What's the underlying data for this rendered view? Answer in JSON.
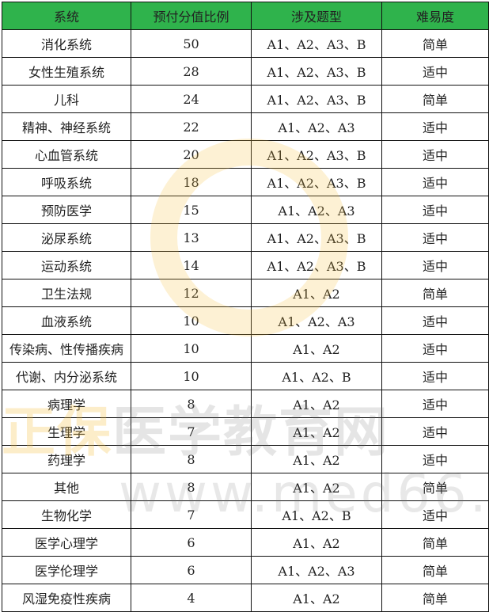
{
  "header": [
    "系统",
    "预付分值比例",
    "涉及题型",
    "难易度"
  ],
  "rows": [
    [
      "消化系统",
      "50",
      "A1、A2、A3、B",
      "简单"
    ],
    [
      "女性生殖系统",
      "28",
      "A1、A2、A3、B",
      "适中"
    ],
    [
      "儿科",
      "24",
      "A1、A2、A3、B",
      "简单"
    ],
    [
      "精神、神经系统",
      "22",
      "A1、A2、A3",
      "适中"
    ],
    [
      "心血管系统",
      "20",
      "A1、A2、A3、B",
      "适中"
    ],
    [
      "呼吸系统",
      "18",
      "A1、A2、A3、B",
      "适中"
    ],
    [
      "预防医学",
      "15",
      "A1、A2、A3",
      "适中"
    ],
    [
      "泌尿系统",
      "13",
      "A1、A2、A3、B",
      "适中"
    ],
    [
      "运动系统",
      "14",
      "A1、A2、A3、B",
      "适中"
    ],
    [
      "卫生法规",
      "12",
      "A1、A2",
      "简单"
    ],
    [
      "血液系统",
      "10",
      "A1、A2、A3",
      "适中"
    ],
    [
      "传染病、性传播疾病",
      "10",
      "A1、A2",
      "适中"
    ],
    [
      "代谢、内分泌系统",
      "10",
      "A1、A2、B",
      "适中"
    ],
    [
      "病理学",
      "8",
      "A1、A2",
      "适中"
    ],
    [
      "生理学",
      "7",
      "A1、A2",
      "适中"
    ],
    [
      "药理学",
      "8",
      "A1、A2",
      "适中"
    ],
    [
      "其他",
      "8",
      "A1、A2",
      "简单"
    ],
    [
      "生物化学",
      "7",
      "A1、A2、B",
      "适中"
    ],
    [
      "医学心理学",
      "6",
      "A1、A2",
      "简单"
    ],
    [
      "医学伦理学",
      "6",
      "A1、A2、A3",
      "简单"
    ],
    [
      "风湿免疫性疾病",
      "4",
      "A1、A2",
      "简单"
    ]
  ],
  "watermark": {
    "brand": "正保",
    "name": "医学教育网",
    "url": "www.med66.com"
  },
  "colors": {
    "header_bg": "#2fb34c",
    "watermark": "#f5be3c"
  }
}
